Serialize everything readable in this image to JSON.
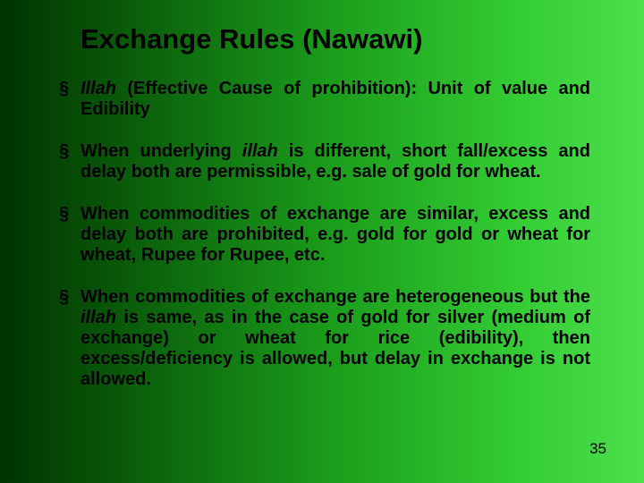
{
  "slide": {
    "title": "Exchange Rules (Nawawi)",
    "background_gradient": {
      "direction": "to right",
      "stops": [
        "#003300",
        "#0a5c0a",
        "#1a9a1a",
        "#33cc33",
        "#4de04d"
      ]
    },
    "text_color": "#000000",
    "title_fontsize": 31,
    "body_fontsize": 20,
    "bullets": [
      {
        "pre": "",
        "italic1": "Illah",
        "mid": " (Effective Cause of prohibition): Unit of value and Edibility",
        "italic2": "",
        "post": ""
      },
      {
        "pre": "When underlying ",
        "italic1": "illah",
        "mid": " is different, short fall/excess and delay both are permissible, e.g. sale of gold for wheat.",
        "italic2": "",
        "post": ""
      },
      {
        "pre": "When commodities of exchange are similar, excess and delay both are prohibited, e.g. gold for gold or wheat for wheat, Rupee for Rupee, etc.",
        "italic1": "",
        "mid": "",
        "italic2": "",
        "post": ""
      },
      {
        "pre": "When commodities of exchange are heterogeneous but the ",
        "italic1": "illah",
        "mid": " is same, as in the case of gold for silver (medium of exchange) or wheat for rice (edibility), then excess/deficiency is allowed, but delay in exchange is not allowed.",
        "italic2": "",
        "post": ""
      }
    ],
    "slide_number": "35"
  }
}
